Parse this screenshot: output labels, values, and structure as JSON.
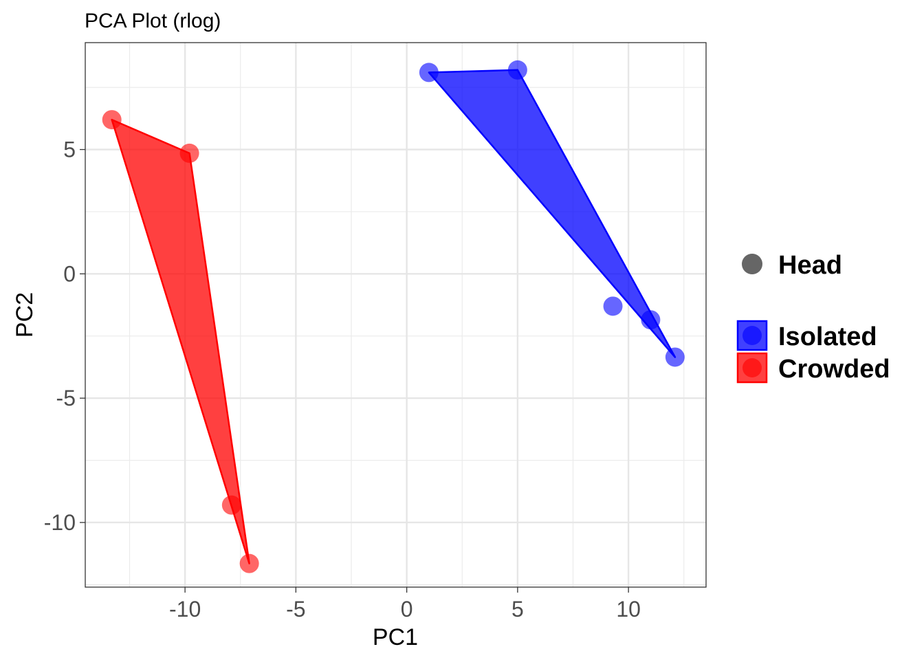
{
  "chart_data": {
    "type": "scatter",
    "title": "PCA Plot (rlog)",
    "xlabel": "PC1",
    "ylabel": "PC2",
    "xlim": [
      -14.5,
      13.5
    ],
    "ylim": [
      -12.6,
      9.3
    ],
    "x_ticks": [
      -10,
      -5,
      0,
      5,
      10
    ],
    "y_ticks": [
      -10,
      -5,
      0,
      5
    ],
    "grid": true,
    "legend_position": "right",
    "shape_legend": {
      "label": "Head",
      "color": "#666666"
    },
    "series": [
      {
        "name": "Isolated",
        "color": "#0000ff",
        "points": [
          {
            "x": 1.0,
            "y": 8.1
          },
          {
            "x": 5.0,
            "y": 8.2
          },
          {
            "x": 9.3,
            "y": -1.3
          },
          {
            "x": 11.0,
            "y": -1.85
          },
          {
            "x": 12.1,
            "y": -3.35
          }
        ],
        "hull": [
          {
            "x": 1.0,
            "y": 8.1
          },
          {
            "x": 5.0,
            "y": 8.2
          },
          {
            "x": 12.1,
            "y": -3.35
          }
        ]
      },
      {
        "name": "Crowded",
        "color": "#ff0000",
        "points": [
          {
            "x": -13.3,
            "y": 6.2
          },
          {
            "x": -9.8,
            "y": 4.85
          },
          {
            "x": -7.9,
            "y": -9.3
          },
          {
            "x": -7.1,
            "y": -11.65
          }
        ],
        "hull": [
          {
            "x": -13.3,
            "y": 6.2
          },
          {
            "x": -9.8,
            "y": 4.85
          },
          {
            "x": -7.1,
            "y": -11.65
          }
        ]
      }
    ]
  }
}
